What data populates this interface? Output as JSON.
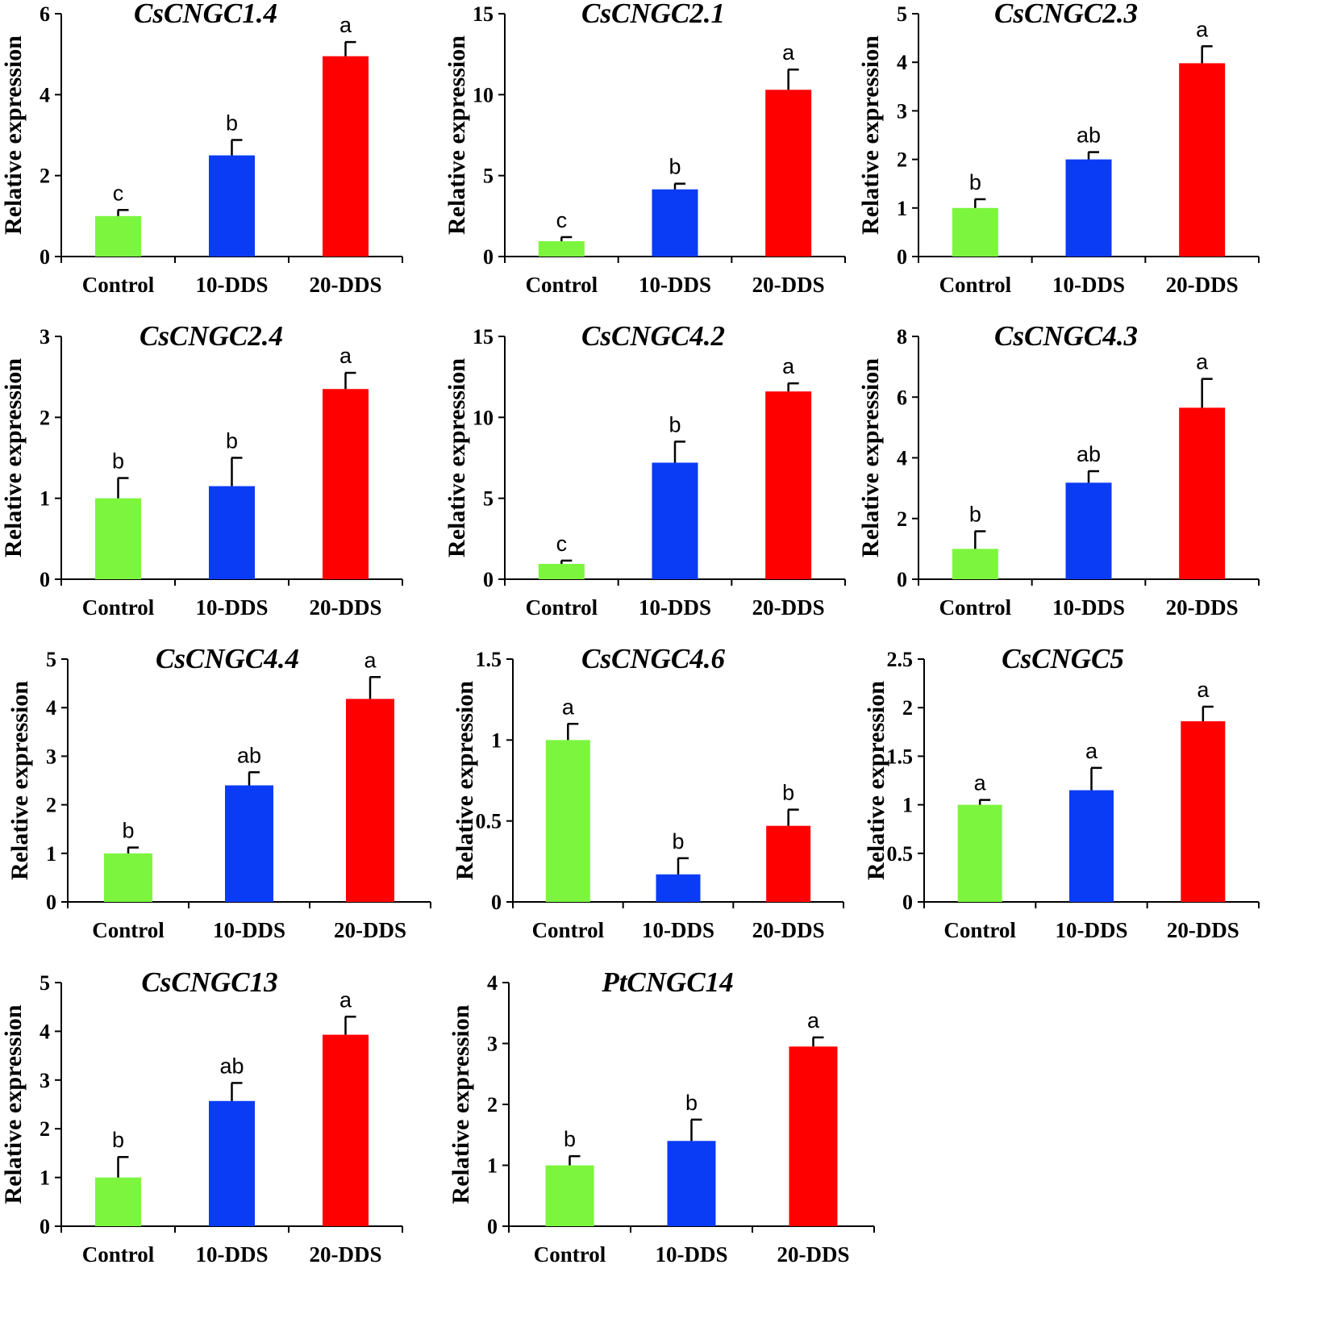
{
  "colors": {
    "control": "#7cf53f",
    "dds10": "#0a3cf5",
    "dds20": "#ff0000",
    "axis": "#000000"
  },
  "chart_data": [
    {
      "type": "bar",
      "title": "CsCNGC1.4",
      "ylabel": "Relative expression",
      "categories": [
        "Control",
        "10-DDS",
        "20-DDS"
      ],
      "values": [
        1.0,
        2.5,
        4.95
      ],
      "errors": [
        0.15,
        0.38,
        0.35
      ],
      "significance": [
        "c",
        "b",
        "a"
      ],
      "ylim": [
        0,
        6
      ],
      "yticks": [
        "0",
        "2",
        "4",
        "6"
      ]
    },
    {
      "type": "bar",
      "title": "CsCNGC2.1",
      "ylabel": "Relative expression",
      "categories": [
        "Control",
        "10-DDS",
        "20-DDS"
      ],
      "values": [
        0.95,
        4.15,
        10.3
      ],
      "errors": [
        0.25,
        0.35,
        1.25
      ],
      "significance": [
        "c",
        "b",
        "a"
      ],
      "ylim": [
        0,
        15
      ],
      "yticks": [
        "0",
        "5",
        "10",
        "15"
      ]
    },
    {
      "type": "bar",
      "title": "CsCNGC2.3",
      "ylabel": "Relative expression",
      "categories": [
        "Control",
        "10-DDS",
        "20-DDS"
      ],
      "values": [
        1.0,
        2.0,
        3.98
      ],
      "errors": [
        0.18,
        0.15,
        0.35
      ],
      "significance": [
        "b",
        "ab",
        "a"
      ],
      "ylim": [
        0,
        5
      ],
      "yticks": [
        "0",
        "1",
        "2",
        "3",
        "4",
        "5"
      ]
    },
    {
      "type": "bar",
      "title": "CsCNGC2.4",
      "ylabel": "Relative expression",
      "categories": [
        "Control",
        "10-DDS",
        "20-DDS"
      ],
      "values": [
        1.0,
        1.15,
        2.35
      ],
      "errors": [
        0.25,
        0.35,
        0.2
      ],
      "significance": [
        "b",
        "b",
        "a"
      ],
      "ylim": [
        0,
        3
      ],
      "yticks": [
        "0",
        "1",
        "2",
        "3"
      ]
    },
    {
      "type": "bar",
      "title": "CsCNGC4.2",
      "ylabel": "Relative expression",
      "categories": [
        "Control",
        "10-DDS",
        "20-DDS"
      ],
      "values": [
        0.95,
        7.2,
        11.6
      ],
      "errors": [
        0.2,
        1.3,
        0.5
      ],
      "significance": [
        "c",
        "b",
        "a"
      ],
      "ylim": [
        0,
        15
      ],
      "yticks": [
        "0",
        "5",
        "10",
        "15"
      ]
    },
    {
      "type": "bar",
      "title": "CsCNGC4.3",
      "ylabel": "Relative expression",
      "categories": [
        "Control",
        "10-DDS",
        "20-DDS"
      ],
      "values": [
        1.0,
        3.18,
        5.65
      ],
      "errors": [
        0.58,
        0.38,
        0.95
      ],
      "significance": [
        "b",
        "ab",
        "a"
      ],
      "ylim": [
        0,
        8
      ],
      "yticks": [
        "0",
        "2",
        "4",
        "6",
        "8"
      ]
    },
    {
      "type": "bar",
      "title": "CsCNGC4.4",
      "ylabel": "Relative expression",
      "categories": [
        "Control",
        "10-DDS",
        "20-DDS"
      ],
      "values": [
        1.0,
        2.4,
        4.18
      ],
      "errors": [
        0.12,
        0.27,
        0.45
      ],
      "significance": [
        "b",
        "ab",
        "a"
      ],
      "ylim": [
        0,
        5
      ],
      "yticks": [
        "0",
        "1",
        "2",
        "3",
        "4",
        "5"
      ]
    },
    {
      "type": "bar",
      "title": "CsCNGC4.6",
      "ylabel": "Relative expression",
      "categories": [
        "Control",
        "10-DDS",
        "20-DDS"
      ],
      "values": [
        1.0,
        0.17,
        0.47
      ],
      "errors": [
        0.1,
        0.1,
        0.1
      ],
      "significance": [
        "a",
        "b",
        "b"
      ],
      "ylim": [
        0,
        1.5
      ],
      "yticks": [
        "0",
        "0.5",
        "1",
        "1.5"
      ]
    },
    {
      "type": "bar",
      "title": "CsCNGC5",
      "ylabel": "Relative expression",
      "categories": [
        "Control",
        "10-DDS",
        "20-DDS"
      ],
      "values": [
        1.0,
        1.15,
        1.86
      ],
      "errors": [
        0.05,
        0.23,
        0.15
      ],
      "significance": [
        "a",
        "a",
        "a"
      ],
      "ylim": [
        0,
        2.5
      ],
      "yticks": [
        "0",
        "0.5",
        "1",
        "1.5",
        "2",
        "2.5"
      ]
    },
    {
      "type": "bar",
      "title": "CsCNGC13",
      "ylabel": "Relative expression",
      "categories": [
        "Control",
        "10-DDS",
        "20-DDS"
      ],
      "values": [
        1.0,
        2.57,
        3.93
      ],
      "errors": [
        0.42,
        0.37,
        0.37
      ],
      "significance": [
        "b",
        "ab",
        "a"
      ],
      "ylim": [
        0,
        5
      ],
      "yticks": [
        "0",
        "1",
        "2",
        "3",
        "4",
        "5"
      ]
    },
    {
      "type": "bar",
      "title": "PtCNGC14",
      "ylabel": "Relative expression",
      "categories": [
        "Control",
        "10-DDS",
        "20-DDS"
      ],
      "values": [
        1.0,
        1.4,
        2.95
      ],
      "errors": [
        0.15,
        0.35,
        0.15
      ],
      "significance": [
        "b",
        "b",
        "a"
      ],
      "ylim": [
        0,
        4
      ],
      "yticks": [
        "0",
        "1",
        "2",
        "3",
        "4"
      ]
    }
  ]
}
